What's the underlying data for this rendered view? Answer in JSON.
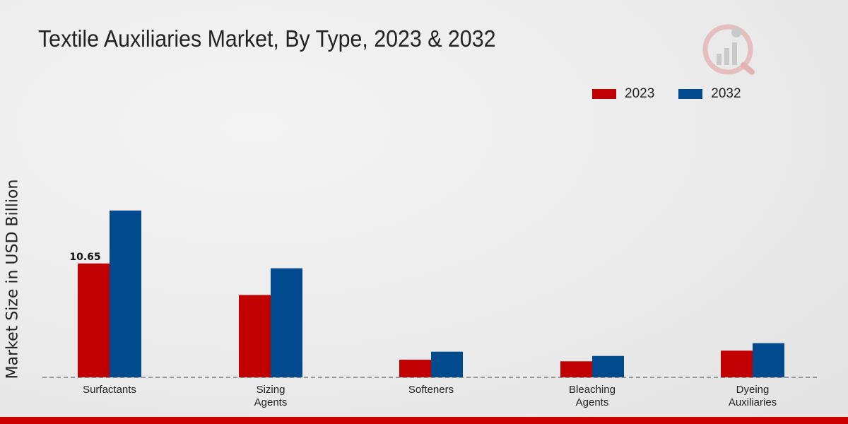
{
  "chart_data": {
    "type": "bar",
    "title": "Textile Auxiliaries Market, By Type, 2023 & 2032",
    "ylabel": "Market Size in USD Billion",
    "xlabel": "",
    "categories": [
      "Surfactants",
      "Sizing\nAgents",
      "Softeners",
      "Bleaching\nAgents",
      "Dyeing\nAuxiliaries"
    ],
    "series": [
      {
        "name": "2023",
        "color": "#c00000",
        "values": [
          10.65,
          7.7,
          1.65,
          1.5,
          2.5
        ]
      },
      {
        "name": "2032",
        "color": "#004a8d",
        "values": [
          15.6,
          10.2,
          2.4,
          2.0,
          3.2
        ]
      }
    ],
    "data_labels": [
      {
        "series": 0,
        "index": 0,
        "text": "10.65"
      }
    ],
    "ylim": [
      0,
      30
    ],
    "grid": false,
    "legend_position": "top-right"
  }
}
